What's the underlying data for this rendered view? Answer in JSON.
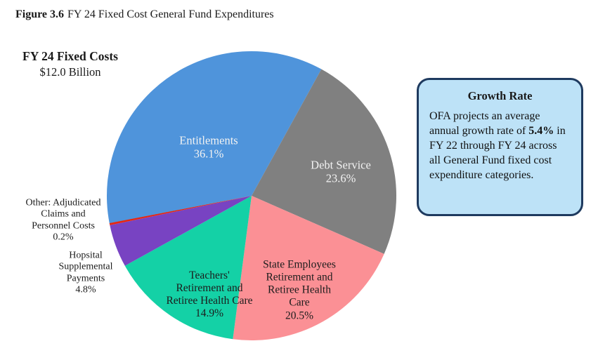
{
  "title": {
    "figure_label": "Figure 3.6",
    "text": "FY 24 Fixed Cost General Fund Expenditures"
  },
  "chart_data": {
    "type": "pie",
    "title": "FY 24 Fixed Costs",
    "subtitle": "$12.0 Billion",
    "start_angle_deg": 259,
    "direction": "clockwise",
    "slices": [
      {
        "label": "Entitlements",
        "value_pct": 36.1,
        "pct_label": "36.1%",
        "color": "#4f94db",
        "label_color": "#f2f2f2",
        "label_position": "inside"
      },
      {
        "label": "Debt Service",
        "value_pct": 23.6,
        "pct_label": "23.6%",
        "color": "#808080",
        "label_color": "#f2f2f2",
        "label_position": "inside"
      },
      {
        "label": "State Employees Retirement and Retiree Health Care",
        "value_pct": 20.5,
        "pct_label": "20.5%",
        "color": "#fb9095",
        "label_color": "#1c1c1c",
        "label_position": "inside"
      },
      {
        "label": "Teachers' Retirement and Retiree Health Care",
        "value_pct": 14.9,
        "pct_label": "14.9%",
        "color": "#14d1a6",
        "label_color": "#1c1c1c",
        "label_position": "inside"
      },
      {
        "label": "Hopsital Supplemental Payments",
        "value_pct": 4.8,
        "pct_label": "4.8%",
        "color": "#7843c2",
        "label_color": "#1c1c1c",
        "label_position": "outside"
      },
      {
        "label": "Other: Adjudicated Claims and Personnel Costs",
        "value_pct": 0.2,
        "pct_label": "0.2%",
        "color": "#e52711",
        "label_color": "#1c1c1c",
        "label_position": "outside"
      }
    ]
  },
  "callout": {
    "title": "Growth Rate",
    "body_before": "OFA projects an average annual growth rate of ",
    "body_bold": "5.4%",
    "body_after": " in FY 22 through FY 24 across all General Fund fixed cost expenditure categories.",
    "background": "#bde2f7",
    "border_color": "#1e3a5f"
  }
}
